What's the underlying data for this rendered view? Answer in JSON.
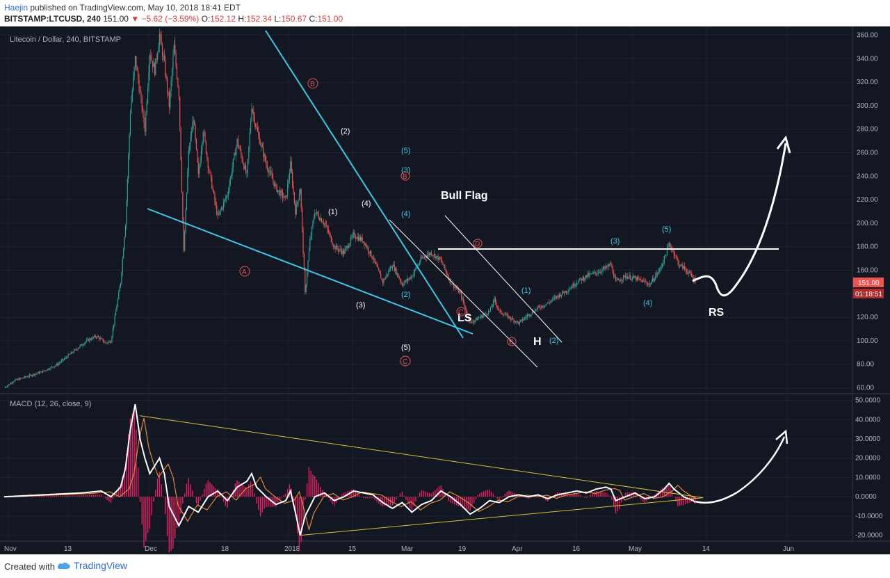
{
  "header": {
    "author": "Haejin",
    "published_text": "published on TradingView.com, May 10, 2018 18:41 EDT",
    "symbol": "BITSTAMP:LTCUSD, 240",
    "last": "151.00",
    "change": "−5.62 (−3.59%)",
    "o_label": "O:",
    "o": "152.12",
    "h_label": "H:",
    "h": "152.34",
    "l_label": "L:",
    "l": "150.67",
    "c_label": "C:",
    "c": "151.00"
  },
  "footer": {
    "created_with": "Created with",
    "brand": "TradingView"
  },
  "colors": {
    "bg": "#131722",
    "up": "#26a69a",
    "down": "#ef5350",
    "cyan": "#3cc8e6",
    "wave_red": "#e25555",
    "macd_line": "#ffffff",
    "signal_line": "#e08a3c",
    "histogram": "#e91e63",
    "triangle": "#d9c13a"
  },
  "chart_data": [
    {
      "type": "candlestick",
      "title": "Litecoin / Dollar, 240, BITSTAMP",
      "ylim": [
        55,
        365
      ],
      "y_ticks": [
        60,
        80,
        100,
        120,
        140,
        160,
        180,
        200,
        220,
        240,
        260,
        280,
        300,
        320,
        340,
        360
      ],
      "x_ticks": [
        "Nov",
        "13",
        "Dec",
        "18",
        "2018",
        "15",
        "Mar",
        "19",
        "Apr",
        "16",
        "May",
        "14",
        "Jun"
      ],
      "price_label": "151.00",
      "time_label": "01:18:51",
      "price_path": [
        [
          0,
          60
        ],
        [
          10,
          66
        ],
        [
          25,
          70
        ],
        [
          40,
          74
        ],
        [
          55,
          80
        ],
        [
          70,
          90
        ],
        [
          85,
          100
        ],
        [
          95,
          104
        ],
        [
          105,
          98
        ],
        [
          110,
          100
        ],
        [
          120,
          150
        ],
        [
          125,
          200
        ],
        [
          130,
          295
        ],
        [
          135,
          340
        ],
        [
          140,
          310
        ],
        [
          145,
          280
        ],
        [
          150,
          345
        ],
        [
          155,
          330
        ],
        [
          160,
          360
        ],
        [
          165,
          335
        ],
        [
          170,
          300
        ],
        [
          175,
          350
        ],
        [
          180,
          310
        ],
        [
          185,
          175
        ],
        [
          190,
          260
        ],
        [
          195,
          290
        ],
        [
          200,
          240
        ],
        [
          205,
          280
        ],
        [
          210,
          250
        ],
        [
          220,
          205
        ],
        [
          230,
          225
        ],
        [
          240,
          270
        ],
        [
          250,
          240
        ],
        [
          255,
          300
        ],
        [
          260,
          280
        ],
        [
          270,
          250
        ],
        [
          280,
          230
        ],
        [
          290,
          220
        ],
        [
          295,
          250
        ],
        [
          300,
          210
        ],
        [
          305,
          230
        ],
        [
          310,
          140
        ],
        [
          315,
          185
        ],
        [
          320,
          210
        ],
        [
          330,
          200
        ],
        [
          340,
          180
        ],
        [
          350,
          175
        ],
        [
          360,
          190
        ],
        [
          370,
          185
        ],
        [
          380,
          170
        ],
        [
          390,
          150
        ],
        [
          400,
          165
        ],
        [
          410,
          148
        ],
        [
          420,
          155
        ],
        [
          430,
          170
        ],
        [
          440,
          175
        ],
        [
          450,
          168
        ],
        [
          460,
          150
        ],
        [
          470,
          140
        ],
        [
          480,
          115
        ],
        [
          490,
          120
        ],
        [
          500,
          125
        ],
        [
          505,
          135
        ],
        [
          510,
          125
        ],
        [
          520,
          120
        ],
        [
          530,
          115
        ],
        [
          540,
          122
        ],
        [
          550,
          128
        ],
        [
          560,
          132
        ],
        [
          570,
          138
        ],
        [
          580,
          143
        ],
        [
          590,
          150
        ],
        [
          600,
          155
        ],
        [
          610,
          158
        ],
        [
          620,
          162
        ],
        [
          625,
          165
        ],
        [
          630,
          150
        ],
        [
          640,
          155
        ],
        [
          650,
          153
        ],
        [
          660,
          150
        ],
        [
          665,
          148
        ],
        [
          675,
          160
        ],
        [
          680,
          170
        ],
        [
          685,
          182
        ],
        [
          690,
          175
        ],
        [
          695,
          165
        ],
        [
          700,
          162
        ],
        [
          705,
          158
        ],
        [
          710,
          153
        ],
        [
          712,
          151
        ]
      ],
      "annotations": {
        "pattern_labels": [
          "Bull Flag",
          "LS",
          "H",
          "RS"
        ],
        "wave_labels_white": [
          "(1)",
          "(2)",
          "(3)",
          "(4)",
          "(5)"
        ],
        "wave_labels_cyan": [
          "(1)",
          "(2)",
          "(3)",
          "(4)",
          "(5)"
        ],
        "wave_labels_red": [
          "A",
          "B",
          "C",
          "D",
          "E"
        ],
        "neckline": 178
      }
    },
    {
      "type": "line",
      "title": "MACD (12, 26, close, 9)",
      "ylim": [
        -23,
        52
      ],
      "y_ticks": [
        -20,
        -10,
        0,
        10,
        20,
        30,
        40,
        50
      ],
      "y_tick_labels": [
        "-20.0000",
        "-10.0000",
        "0.0000",
        "10.0000",
        "20.0000",
        "30.0000",
        "40.0000",
        "50.0000"
      ],
      "macd_path": [
        [
          0,
          0
        ],
        [
          40,
          1
        ],
        [
          80,
          2
        ],
        [
          100,
          3
        ],
        [
          110,
          0
        ],
        [
          120,
          5
        ],
        [
          125,
          15
        ],
        [
          130,
          35
        ],
        [
          135,
          48
        ],
        [
          140,
          30
        ],
        [
          145,
          20
        ],
        [
          150,
          12
        ],
        [
          155,
          16
        ],
        [
          160,
          20
        ],
        [
          165,
          12
        ],
        [
          170,
          -5
        ],
        [
          180,
          -15
        ],
        [
          190,
          -5
        ],
        [
          200,
          -8
        ],
        [
          210,
          0
        ],
        [
          220,
          3
        ],
        [
          230,
          -2
        ],
        [
          240,
          5
        ],
        [
          250,
          8
        ],
        [
          255,
          12
        ],
        [
          260,
          5
        ],
        [
          270,
          0
        ],
        [
          280,
          -4
        ],
        [
          290,
          -2
        ],
        [
          295,
          3
        ],
        [
          300,
          -8
        ],
        [
          305,
          -20
        ],
        [
          310,
          -10
        ],
        [
          320,
          0
        ],
        [
          330,
          2
        ],
        [
          340,
          -2
        ],
        [
          350,
          0
        ],
        [
          360,
          3
        ],
        [
          370,
          2
        ],
        [
          380,
          1
        ],
        [
          390,
          -3
        ],
        [
          400,
          -6
        ],
        [
          410,
          -3
        ],
        [
          420,
          -8
        ],
        [
          430,
          -4
        ],
        [
          440,
          -2
        ],
        [
          450,
          3
        ],
        [
          460,
          0
        ],
        [
          470,
          -4
        ],
        [
          480,
          -9
        ],
        [
          490,
          -6
        ],
        [
          500,
          -2
        ],
        [
          510,
          -3
        ],
        [
          520,
          0
        ],
        [
          530,
          1
        ],
        [
          540,
          0
        ],
        [
          550,
          1
        ],
        [
          560,
          -1
        ],
        [
          570,
          1
        ],
        [
          580,
          2
        ],
        [
          590,
          3
        ],
        [
          600,
          2
        ],
        [
          610,
          4
        ],
        [
          620,
          5
        ],
        [
          625,
          4
        ],
        [
          630,
          -2
        ],
        [
          640,
          0
        ],
        [
          650,
          2
        ],
        [
          660,
          -1
        ],
        [
          670,
          0
        ],
        [
          680,
          4
        ],
        [
          685,
          7
        ],
        [
          690,
          4
        ],
        [
          700,
          0
        ],
        [
          710,
          -2
        ],
        [
          712,
          -3
        ]
      ],
      "signal_lag": 3,
      "triangle_upper": [
        [
          140,
          42
        ],
        [
          720,
          -0.5
        ]
      ],
      "triangle_lower": [
        [
          305,
          -20
        ],
        [
          720,
          -0.5
        ]
      ]
    }
  ]
}
